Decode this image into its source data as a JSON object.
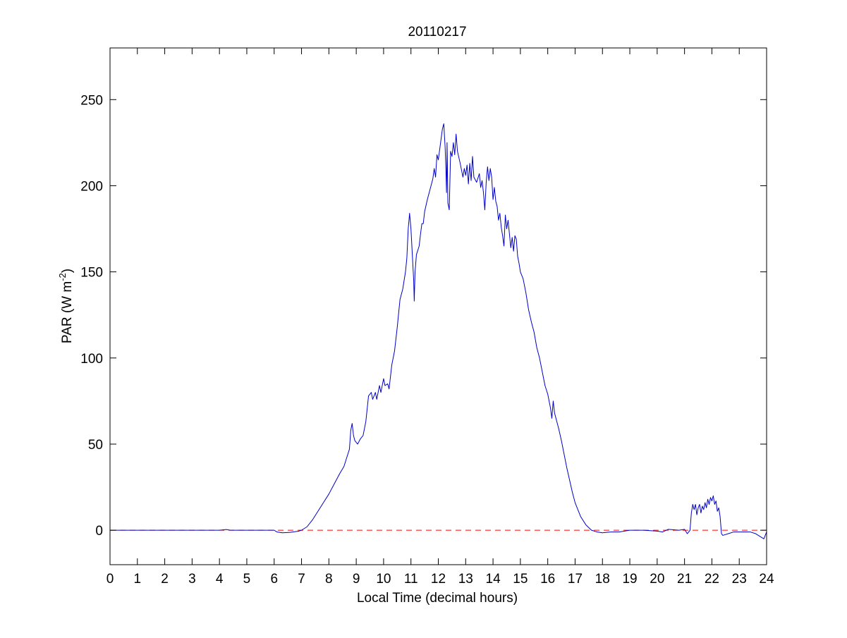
{
  "figure": {
    "background": "#ffffff"
  },
  "chart_data": {
    "type": "line",
    "title": "20110217",
    "xlabel": "Local Time (decimal hours)",
    "ylabel_main": "PAR (W m",
    "ylabel_sup": "-2",
    "ylabel_close": ")",
    "xlim": [
      0,
      24
    ],
    "ylim": [
      -20,
      280
    ],
    "xticks": [
      0,
      1,
      2,
      3,
      4,
      5,
      6,
      7,
      8,
      9,
      10,
      11,
      12,
      13,
      14,
      15,
      16,
      17,
      18,
      19,
      20,
      21,
      22,
      23,
      24
    ],
    "xtick_labels": [
      "0",
      "1",
      "2",
      "3",
      "4",
      "5",
      "6",
      "7",
      "8",
      "9",
      "10",
      "11",
      "12",
      "13",
      "14",
      "15",
      "16",
      "17",
      "18",
      "19",
      "20",
      "21",
      "22",
      "23",
      "24"
    ],
    "yticks": [
      0,
      50,
      100,
      150,
      200,
      250
    ],
    "ytick_labels": [
      "0",
      "50",
      "100",
      "150",
      "200",
      "250"
    ],
    "grid": false,
    "line_color": "#0000c8",
    "reference_line_color": "#ff0000",
    "reference_line": {
      "y": 0,
      "style": "dashed"
    },
    "series": [
      {
        "points": [
          [
            0,
            0
          ],
          [
            4.0,
            0
          ],
          [
            4.25,
            0.4
          ],
          [
            4.4,
            0
          ],
          [
            6.0,
            0
          ],
          [
            6.1,
            -1
          ],
          [
            6.3,
            -1.5
          ],
          [
            6.6,
            -1.2
          ],
          [
            6.9,
            -0.5
          ],
          [
            7.0,
            0
          ],
          [
            7.2,
            2
          ],
          [
            7.4,
            6
          ],
          [
            7.6,
            11
          ],
          [
            7.8,
            16
          ],
          [
            8.0,
            21
          ],
          [
            8.2,
            27
          ],
          [
            8.4,
            33
          ],
          [
            8.55,
            37
          ],
          [
            8.65,
            42
          ],
          [
            8.75,
            47
          ],
          [
            8.8,
            58
          ],
          [
            8.85,
            62
          ],
          [
            8.9,
            55
          ],
          [
            8.95,
            52
          ],
          [
            9.05,
            50
          ],
          [
            9.15,
            53
          ],
          [
            9.25,
            55
          ],
          [
            9.35,
            63
          ],
          [
            9.45,
            78
          ],
          [
            9.55,
            80
          ],
          [
            9.6,
            76
          ],
          [
            9.7,
            80
          ],
          [
            9.75,
            76
          ],
          [
            9.85,
            84
          ],
          [
            9.9,
            80
          ],
          [
            10.0,
            88
          ],
          [
            10.05,
            84
          ],
          [
            10.15,
            85
          ],
          [
            10.2,
            82
          ],
          [
            10.3,
            96
          ],
          [
            10.4,
            104
          ],
          [
            10.5,
            118
          ],
          [
            10.6,
            134
          ],
          [
            10.7,
            140
          ],
          [
            10.8,
            150
          ],
          [
            10.85,
            158
          ],
          [
            10.9,
            175
          ],
          [
            10.95,
            184
          ],
          [
            11.0,
            175
          ],
          [
            11.05,
            160
          ],
          [
            11.1,
            145
          ],
          [
            11.12,
            133
          ],
          [
            11.15,
            150
          ],
          [
            11.2,
            160
          ],
          [
            11.3,
            165
          ],
          [
            11.35,
            172
          ],
          [
            11.4,
            178
          ],
          [
            11.45,
            178
          ],
          [
            11.5,
            185
          ],
          [
            11.6,
            192
          ],
          [
            11.7,
            198
          ],
          [
            11.8,
            204
          ],
          [
            11.85,
            210
          ],
          [
            11.9,
            205
          ],
          [
            11.95,
            218
          ],
          [
            12.0,
            215
          ],
          [
            12.1,
            227
          ],
          [
            12.15,
            233
          ],
          [
            12.2,
            236
          ],
          [
            12.25,
            222
          ],
          [
            12.28,
            208
          ],
          [
            12.3,
            196
          ],
          [
            12.32,
            225
          ],
          [
            12.35,
            190
          ],
          [
            12.4,
            186
          ],
          [
            12.45,
            220
          ],
          [
            12.5,
            217
          ],
          [
            12.55,
            225
          ],
          [
            12.6,
            218
          ],
          [
            12.65,
            230
          ],
          [
            12.7,
            220
          ],
          [
            12.8,
            213
          ],
          [
            12.9,
            205
          ],
          [
            12.95,
            210
          ],
          [
            13.0,
            206
          ],
          [
            13.05,
            212
          ],
          [
            13.1,
            201
          ],
          [
            13.15,
            213
          ],
          [
            13.2,
            203
          ],
          [
            13.25,
            217
          ],
          [
            13.3,
            205
          ],
          [
            13.4,
            202
          ],
          [
            13.5,
            207
          ],
          [
            13.55,
            199
          ],
          [
            13.6,
            203
          ],
          [
            13.65,
            196
          ],
          [
            13.7,
            186
          ],
          [
            13.75,
            202
          ],
          [
            13.8,
            211
          ],
          [
            13.85,
            203
          ],
          [
            13.9,
            210
          ],
          [
            13.95,
            205
          ],
          [
            14.0,
            192
          ],
          [
            14.05,
            199
          ],
          [
            14.1,
            191
          ],
          [
            14.15,
            188
          ],
          [
            14.2,
            180
          ],
          [
            14.25,
            184
          ],
          [
            14.3,
            176
          ],
          [
            14.35,
            171
          ],
          [
            14.4,
            165
          ],
          [
            14.45,
            183
          ],
          [
            14.5,
            175
          ],
          [
            14.55,
            180
          ],
          [
            14.6,
            172
          ],
          [
            14.65,
            164
          ],
          [
            14.7,
            170
          ],
          [
            14.75,
            162
          ],
          [
            14.8,
            171
          ],
          [
            14.85,
            169
          ],
          [
            14.9,
            159
          ],
          [
            14.95,
            155
          ],
          [
            15.0,
            150
          ],
          [
            15.1,
            146
          ],
          [
            15.2,
            138
          ],
          [
            15.3,
            128
          ],
          [
            15.4,
            121
          ],
          [
            15.5,
            115
          ],
          [
            15.6,
            106
          ],
          [
            15.7,
            100
          ],
          [
            15.8,
            92
          ],
          [
            15.9,
            84
          ],
          [
            16.0,
            79
          ],
          [
            16.1,
            71
          ],
          [
            16.15,
            65
          ],
          [
            16.2,
            75
          ],
          [
            16.25,
            68
          ],
          [
            16.4,
            59
          ],
          [
            16.5,
            52
          ],
          [
            16.6,
            44
          ],
          [
            16.7,
            36
          ],
          [
            16.8,
            29
          ],
          [
            16.9,
            22
          ],
          [
            17.0,
            16
          ],
          [
            17.2,
            8
          ],
          [
            17.4,
            3
          ],
          [
            17.6,
            0
          ],
          [
            17.8,
            -1
          ],
          [
            18.0,
            -1.5
          ],
          [
            18.3,
            -1
          ],
          [
            18.6,
            -1
          ],
          [
            19.0,
            0
          ],
          [
            19.5,
            0
          ],
          [
            20.0,
            -0.5
          ],
          [
            20.2,
            -1
          ],
          [
            20.4,
            0.5
          ],
          [
            20.8,
            0
          ],
          [
            21.0,
            0.5
          ],
          [
            21.1,
            -2
          ],
          [
            21.2,
            0
          ],
          [
            21.25,
            10
          ],
          [
            21.3,
            15
          ],
          [
            21.35,
            12
          ],
          [
            21.4,
            15
          ],
          [
            21.45,
            9
          ],
          [
            21.5,
            13
          ],
          [
            21.55,
            15
          ],
          [
            21.6,
            10
          ],
          [
            21.65,
            14
          ],
          [
            21.7,
            12
          ],
          [
            21.75,
            16
          ],
          [
            21.8,
            13
          ],
          [
            21.85,
            18
          ],
          [
            21.9,
            15
          ],
          [
            21.95,
            19
          ],
          [
            22.0,
            17
          ],
          [
            22.05,
            20
          ],
          [
            22.1,
            15
          ],
          [
            22.15,
            17
          ],
          [
            22.2,
            11
          ],
          [
            22.25,
            13
          ],
          [
            22.3,
            8
          ],
          [
            22.35,
            -2
          ],
          [
            22.4,
            -3
          ],
          [
            22.6,
            -2
          ],
          [
            22.8,
            -1
          ],
          [
            23.0,
            -1
          ],
          [
            23.4,
            -1
          ],
          [
            23.6,
            -2
          ],
          [
            23.8,
            -4
          ],
          [
            23.9,
            -5
          ],
          [
            23.95,
            -3
          ],
          [
            24.0,
            -1
          ]
        ]
      }
    ]
  }
}
